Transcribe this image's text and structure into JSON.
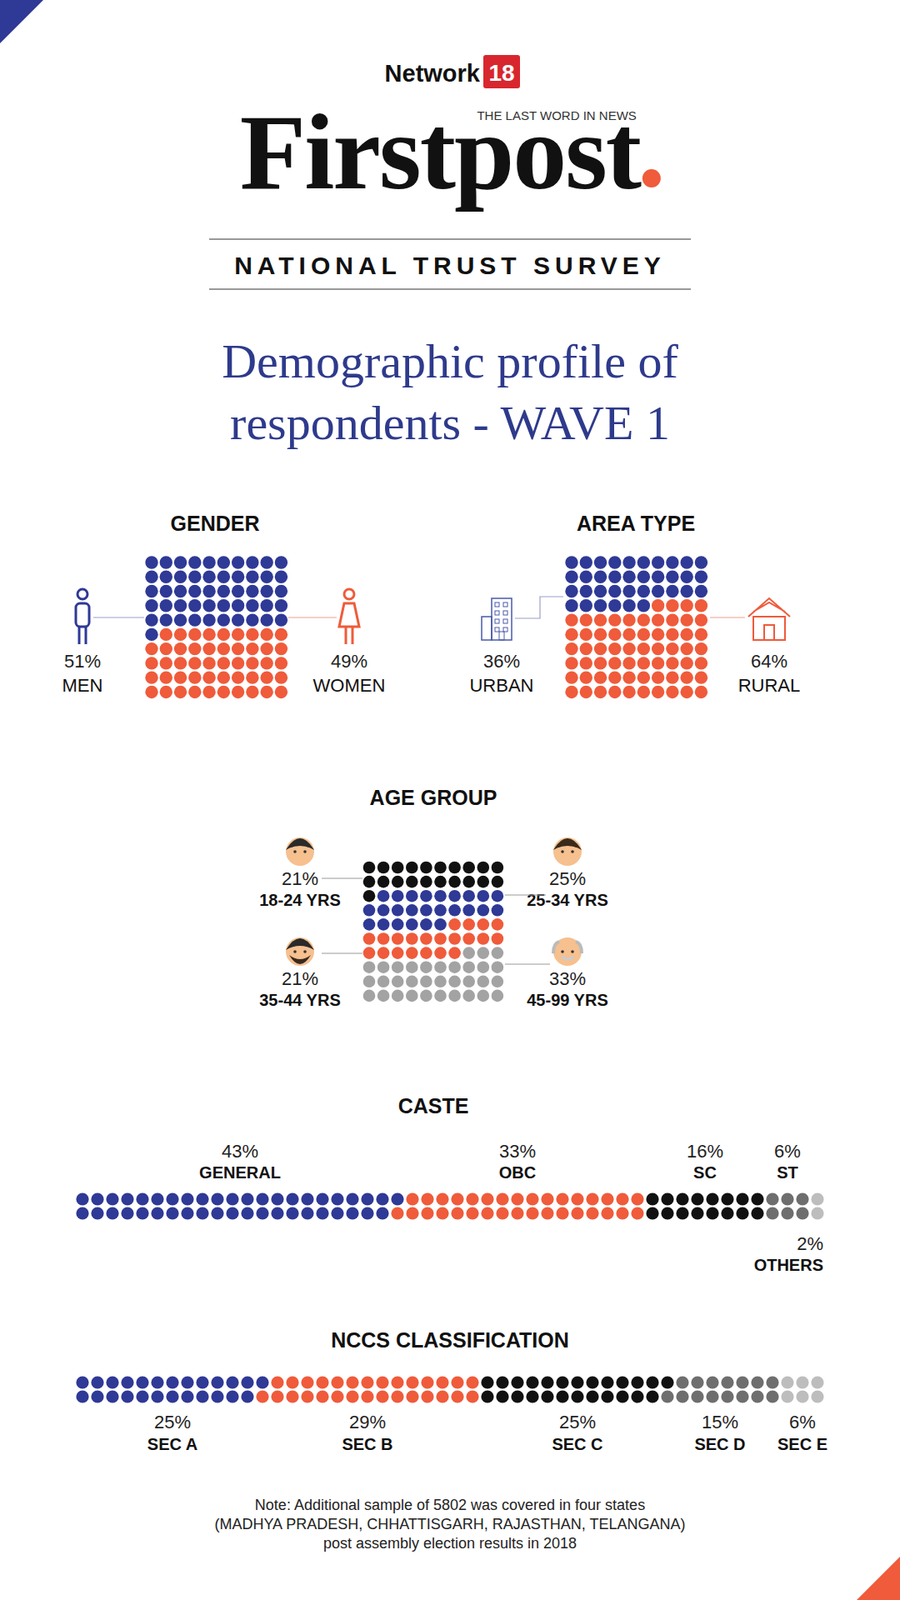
{
  "header": {
    "network": "Network",
    "network_number": "18",
    "brand": "Firstpost",
    "tagline": "THE LAST WORD IN NEWS",
    "survey": "NATIONAL TRUST SURVEY",
    "title": [
      "Demographic profile of",
      "respondents - WAVE 1"
    ]
  },
  "chart_data": [
    {
      "type": "waffle",
      "title": "GENDER",
      "categories": [
        "MEN",
        "WOMEN"
      ],
      "values": [
        51,
        49
      ],
      "value_labels": [
        "51%",
        "49%"
      ],
      "colors": [
        "#2f3996",
        "#ef5b3b"
      ],
      "data_labels": true
    },
    {
      "type": "waffle",
      "title": "AREA TYPE",
      "categories": [
        "URBAN",
        "RURAL"
      ],
      "values": [
        36,
        64
      ],
      "value_labels": [
        "36%",
        "64%"
      ],
      "colors": [
        "#2f3996",
        "#ef5b3b"
      ],
      "data_labels": true
    },
    {
      "type": "waffle",
      "title": "AGE GROUP",
      "categories": [
        "18-24 YRS",
        "25-34 YRS",
        "35-44 YRS",
        "45-99 YRS"
      ],
      "values": [
        21,
        25,
        21,
        33
      ],
      "value_labels": [
        "21%",
        "25%",
        "21%",
        "33%"
      ],
      "colors": [
        "#111111",
        "#2f3996",
        "#ef5b3b",
        "#a3a3a3"
      ],
      "data_labels": true
    },
    {
      "type": "waffle",
      "title": "CASTE",
      "categories": [
        "GENERAL",
        "OBC",
        "SC",
        "ST",
        "OTHERS"
      ],
      "values": [
        43,
        33,
        16,
        6,
        2
      ],
      "value_labels": [
        "43%",
        "33%",
        "16%",
        "6%",
        "2%"
      ],
      "colors": [
        "#2f3996",
        "#ef5b3b",
        "#111111",
        "#6e6e6e",
        "#bdbdbd"
      ],
      "data_labels": true
    },
    {
      "type": "waffle",
      "title": "NCCS CLASSIFICATION",
      "categories": [
        "SEC A",
        "SEC B",
        "SEC C",
        "SEC D",
        "SEC E"
      ],
      "values": [
        25,
        29,
        25,
        15,
        6
      ],
      "value_labels": [
        "25%",
        "29%",
        "25%",
        "15%",
        "6%"
      ],
      "colors": [
        "#2f3996",
        "#ef5b3b",
        "#111111",
        "#6e6e6e",
        "#bdbdbd"
      ],
      "data_labels": true
    }
  ],
  "note": [
    "Note: Additional sample of 5802 was covered in four states",
    "(MADHYA PRADESH, CHHATTISGARH, RAJASTHAN, TELANGANA)",
    "post assembly election results in 2018"
  ]
}
